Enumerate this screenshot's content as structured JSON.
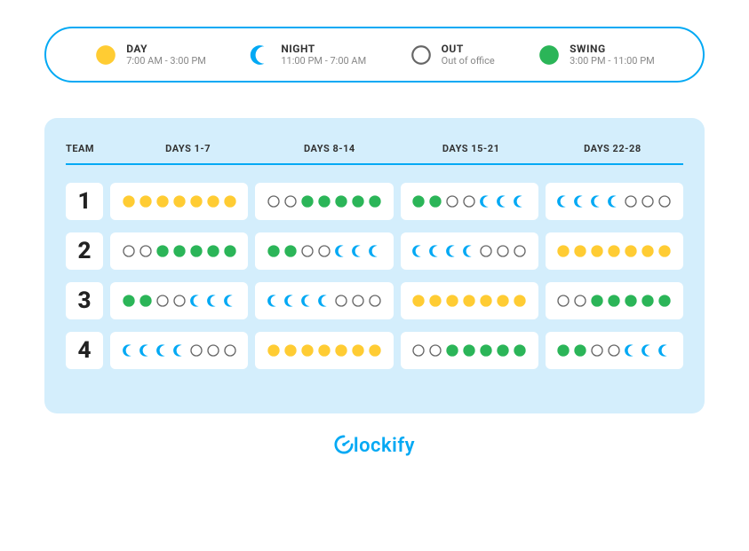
{
  "colors": {
    "day": "#ffcc33",
    "night": "#03a9f4",
    "swing": "#2bb558",
    "out_border": "#666666",
    "accent": "#03a9f4",
    "panel_bg": "#d4eefc",
    "text_dark": "#333333",
    "text_muted": "#888888"
  },
  "legend": [
    {
      "key": "day",
      "label": "DAY",
      "sub": "7:00 AM - 3:00 PM",
      "icon": "day"
    },
    {
      "key": "night",
      "label": "NIGHT",
      "sub": "11:00 PM - 7:00 AM",
      "icon": "night"
    },
    {
      "key": "out",
      "label": "OUT",
      "sub": "Out of office",
      "icon": "out"
    },
    {
      "key": "swing",
      "label": "SWING",
      "sub": "3:00 PM - 11:00 PM",
      "icon": "swing"
    }
  ],
  "headers": {
    "team": "TEAM",
    "weeks": [
      "DAYS 1-7",
      "DAYS 8-14",
      "DAYS 15-21",
      "DAYS 22-28"
    ]
  },
  "teams": [
    {
      "num": "1",
      "weeks": [
        [
          "day",
          "day",
          "day",
          "day",
          "day",
          "day",
          "day"
        ],
        [
          "out",
          "out",
          "swing",
          "swing",
          "swing",
          "swing",
          "swing"
        ],
        [
          "swing",
          "swing",
          "out",
          "out",
          "night",
          "night",
          "night"
        ],
        [
          "night",
          "night",
          "night",
          "night",
          "out",
          "out",
          "out"
        ]
      ]
    },
    {
      "num": "2",
      "weeks": [
        [
          "out",
          "out",
          "swing",
          "swing",
          "swing",
          "swing",
          "swing"
        ],
        [
          "swing",
          "swing",
          "out",
          "out",
          "night",
          "night",
          "night"
        ],
        [
          "night",
          "night",
          "night",
          "night",
          "out",
          "out",
          "out"
        ],
        [
          "day",
          "day",
          "day",
          "day",
          "day",
          "day",
          "day"
        ]
      ]
    },
    {
      "num": "3",
      "weeks": [
        [
          "swing",
          "swing",
          "out",
          "out",
          "night",
          "night",
          "night"
        ],
        [
          "night",
          "night",
          "night",
          "night",
          "out",
          "out",
          "out"
        ],
        [
          "day",
          "day",
          "day",
          "day",
          "day",
          "day",
          "day"
        ],
        [
          "out",
          "out",
          "swing",
          "swing",
          "swing",
          "swing",
          "swing"
        ]
      ]
    },
    {
      "num": "4",
      "weeks": [
        [
          "night",
          "night",
          "night",
          "night",
          "out",
          "out",
          "out"
        ],
        [
          "day",
          "day",
          "day",
          "day",
          "day",
          "day",
          "day"
        ],
        [
          "out",
          "out",
          "swing",
          "swing",
          "swing",
          "swing",
          "swing"
        ],
        [
          "swing",
          "swing",
          "out",
          "out",
          "night",
          "night",
          "night"
        ]
      ]
    }
  ],
  "logo": "lockify",
  "icon_sizes": {
    "legend": 26,
    "cell": 16
  }
}
